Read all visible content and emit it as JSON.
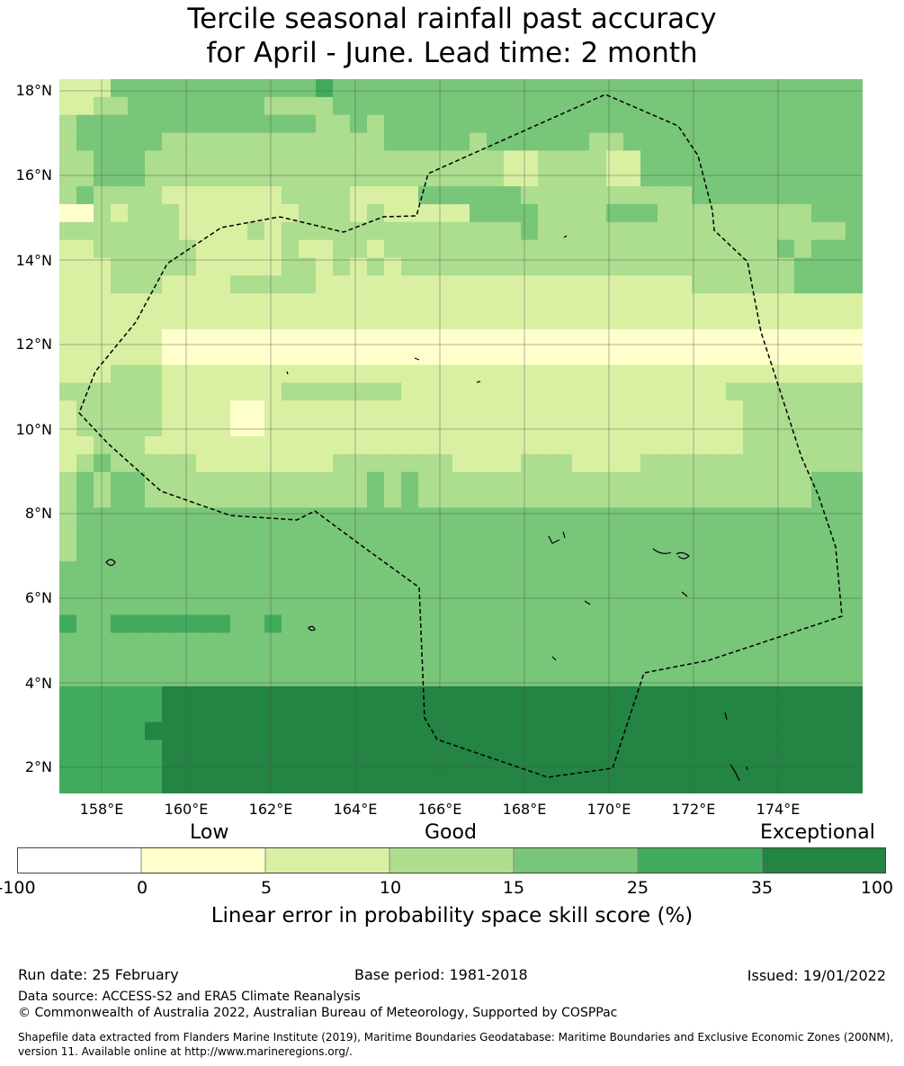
{
  "title": {
    "line1": "Tercile seasonal rainfall past accuracy",
    "line2": "for April - June. Lead time: 2 month"
  },
  "map": {
    "lat_labels": [
      "18°N",
      "16°N",
      "14°N",
      "12°N",
      "10°N",
      "8°N",
      "6°N",
      "4°N",
      "2°N"
    ],
    "lon_labels": [
      "158°E",
      "160°E",
      "162°E",
      "164°E",
      "166°E",
      "168°E",
      "170°E",
      "172°E",
      "174°E"
    ],
    "grid_cells_skill": [
      "11133333333333343333333333333333333333333333333",
      "11223333333322223333333333333333333333333333333",
      "23333333333333322323333333333333333333333333333",
      "23333322222222222223333323333332233333333333333",
      "22333222222222222222222222112222113333333333333",
      "22333222222222222222222222112222113333333333333",
      "23222211111112222111133333322222222223333333333",
      "00212221111111222121111133332222333222222222333",
      "22222221111212222222222222232222222222222222223",
      "11222222111112112212222222222222222222222232333",
      "11122222111112212121222222222222222222222223333",
      "11122211112222211111111111111111111112222223333",
      "11111111111111111111111111111111111111111111111",
      "11111111111111111111111111111111111111111111111",
      "11111100000000000000000000000000000000000000000",
      "11111100000000000000000000000000000000000000000",
      "11122211111111111111111111111111111111111111111",
      "22222211111112222222111111111111111111122222222",
      "12222211110011111111111111111111111111112222222",
      "12222211110011111111111111111111111111112222222",
      "11222111111111111111111111111111111111112222222",
      "12322222111111112222222111122211112222222222222",
      "23233222222222222232322222222222222222222222333",
      "23233222222222222232322222222222222222222222333",
      "23333333333333333333333333333333333333333333333",
      "23333333333333333333333333333333333333333333333",
      "23333333333333333333333333333333333333333333333",
      "33333333333333333333333333333333333333333333333",
      "33333333333333333333333333333333333333333333333",
      "33333333333333333333333333333333333333333333333",
      "43344444443343333333333333333333333333333333333",
      "33333333333333333333333333333333333333333333333",
      "33333333333333333333333333333333333333333333333",
      "33333333333333333333333333333333333333333333333",
      "44444455555555555555555555555555555555555555555",
      "44444455555555555555555555555555555555555555555",
      "44444555555555555555555555555555555555555555555",
      "44444455555555555555555555555555555555555555555",
      "44444455555555555555555555555555555555555555555",
      "44444455555555555555555555555555555555555555555"
    ],
    "palette": [
      "#ffffff",
      "#ffffcc",
      "#d9f0a3",
      "#addd8e",
      "#78c679",
      "#41ab5d",
      "#238443"
    ]
  },
  "legend": {
    "category_labels": [
      "Low",
      "Good",
      "Exceptional"
    ],
    "bins": [
      {
        "from": "-100",
        "to": "0",
        "color": "#ffffff"
      },
      {
        "from": "0",
        "to": "5",
        "color": "#ffffcc"
      },
      {
        "from": "5",
        "to": "10",
        "color": "#d9f0a3"
      },
      {
        "from": "10",
        "to": "15",
        "color": "#addd8e"
      },
      {
        "from": "15",
        "to": "25",
        "color": "#78c679"
      },
      {
        "from": "25",
        "to": "35",
        "color": "#41ab5d"
      },
      {
        "from": "35",
        "to": "100",
        "color": "#238443"
      }
    ],
    "tick_labels": [
      "-100",
      "0",
      "5",
      "10",
      "15",
      "25",
      "35",
      "100"
    ],
    "label": "Linear error in probability space skill score (%)"
  },
  "footer": {
    "run_date": "Run date: 25 February",
    "base_period": "Base period: 1981-2018",
    "issued": "Issued: 19/01/2022",
    "data_source": "Data source: ACCESS-S2 and ERA5 Climate Reanalysis",
    "copyright": "© Commonwealth of Australia 2022, Australian Bureau of Meteorology, Supported by COSPPac",
    "shapefile_line1": "Shapefile data extracted from Flanders Marine Institute (2019), Maritime Boundaries Geodatabase: Maritime Boundaries and Exclusive Economic Zones (200NM),",
    "shapefile_line2": "version 11. Available online at http://www.marineregions.org/."
  }
}
